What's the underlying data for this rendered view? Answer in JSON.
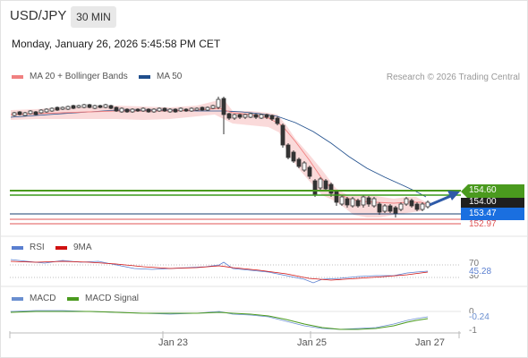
{
  "header": {
    "symbol": "USD/JPY",
    "interval": "30 MIN",
    "timestamp": "Monday, January 26, 2026 5:45:58 PM CET"
  },
  "legend": {
    "ma20_bb": "MA 20 + Bollinger Bands",
    "ma50": "MA 50",
    "credit": "Research © 2026 Trading Central",
    "rsi": "RSI",
    "rsi_ma": "9MA",
    "macd": "MACD",
    "macd_signal": "MACD Signal"
  },
  "colors": {
    "ma20": "#f08080",
    "ma50": "#1f4e8c",
    "bollinger_fill": "#f9d3d3",
    "pivot_green": "#3a9a1a",
    "resistance_green": "#4a9a1e",
    "support_red": "#e05555",
    "last_blue": "#1a6fe0",
    "rsi_blue": "#5a7fd0",
    "rsi_ma_red": "#d01010",
    "macd_blue": "#6a8fd0",
    "macd_signal_green": "#4a9a1e"
  },
  "price_labels": {
    "resistance": "154.60",
    "pivot": "154.00",
    "last": "153.47",
    "support": "152.97"
  },
  "rsi_panel": {
    "level_high": "70",
    "value": "45.28",
    "level_low": "30"
  },
  "macd_panel": {
    "level_zero": "0",
    "value": "-0.24",
    "level_low": "-1"
  },
  "x_axis": {
    "ticks": [
      "Jan 23",
      "Jan 25",
      "Jan 27"
    ]
  }
}
